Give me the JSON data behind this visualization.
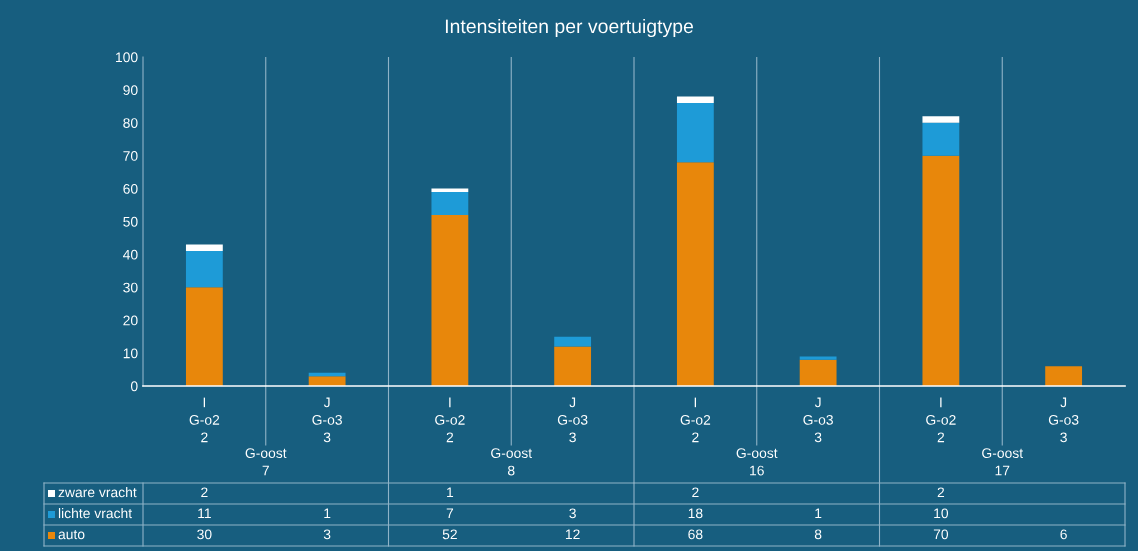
{
  "chart_data": {
    "type": "bar",
    "title": "Intensiteiten per voertuigtype",
    "stacked": true,
    "categories": [
      "I\nG-o2\n2",
      "J\nG-o3\n3",
      "I\nG-o2\n2",
      "J\nG-o3\n3",
      "I\nG-o2\n2",
      "J\nG-o3\n3",
      "I\nG-o2\n2",
      "J\nG-o3\n3"
    ],
    "annotations": [
      "G-oost\n7",
      "G-oost\n8",
      "G-oost\n16",
      "G-oost\n17"
    ],
    "series": [
      {
        "name": "auto",
        "color": "#e8870b",
        "values": [
          30,
          3,
          52,
          12,
          68,
          8,
          70,
          6
        ]
      },
      {
        "name": "lichte vracht",
        "color": "#1e9bd7",
        "values": [
          11,
          1,
          7,
          3,
          18,
          1,
          10,
          null
        ]
      },
      {
        "name": "zware vracht",
        "color": "#ffffff",
        "values": [
          2,
          null,
          1,
          null,
          2,
          null,
          2,
          null
        ]
      }
    ],
    "ylim": [
      0,
      100
    ],
    "yticks": [
      0,
      10,
      20,
      30,
      40,
      50,
      60,
      70,
      80,
      90,
      100
    ],
    "grid": false,
    "legend": "bottom",
    "data_labels": true
  }
}
